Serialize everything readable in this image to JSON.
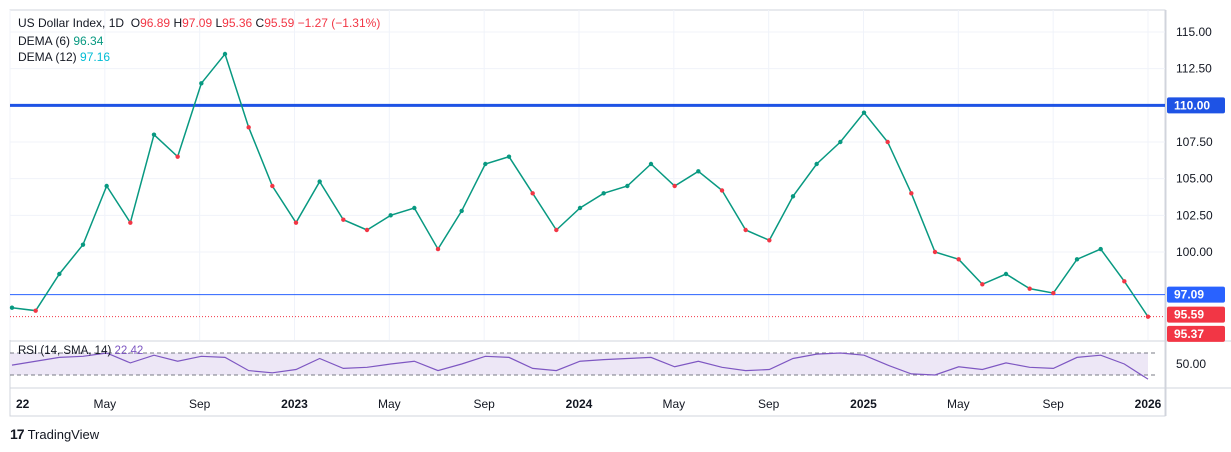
{
  "header": {
    "symbol": "US Dollar Index, 1D",
    "o_label": "O",
    "o_value": "96.89",
    "h_label": "H",
    "h_value": "97.09",
    "l_label": "L",
    "l_value": "95.36",
    "c_label": "C",
    "c_value": "95.59",
    "change": "−1.27 (−1.31%)",
    "dema6_label": "DEMA (6)",
    "dema6_value": "96.34",
    "dema12_label": "DEMA (12)",
    "dema12_value": "97.16",
    "rsi_label": "RSI (14, SMA, 14)",
    "rsi_value": "22.42"
  },
  "branding": {
    "logo": "17",
    "name": "TradingView"
  },
  "colors": {
    "up": "#089981",
    "down": "#f23645",
    "hline": "#1e53e5",
    "thin_line": "#2962ff",
    "rsi": "#7e57c2",
    "rsi_band": "#ede7f6",
    "dotted": "#f23645"
  },
  "chart_data": {
    "type": "line",
    "title": "US Dollar Index, 1D",
    "x_ticks": [
      "2022",
      "May",
      "Sep",
      "2023",
      "May",
      "Sep",
      "2024",
      "May",
      "Sep",
      "2025",
      "May",
      "Sep",
      "2026"
    ],
    "y_ticks": [
      100.0,
      102.5,
      105.0,
      107.5,
      112.5,
      115.0
    ],
    "ylim": [
      94.0,
      116.5
    ],
    "price_labels": [
      {
        "text": "110.00",
        "value": 110.0,
        "color": "#1e53e5"
      },
      {
        "text": "97.09",
        "value": 97.09,
        "color": "#2962ff"
      },
      {
        "text": "95.59",
        "value": 95.59,
        "color": "#f23645"
      },
      {
        "text": "95.37",
        "value": 95.37,
        "color": "#f23645"
      }
    ],
    "hlines": [
      110.0,
      97.09
    ],
    "dotted_lines": [
      95.59
    ],
    "series": [
      {
        "name": "US Dollar Index",
        "x": [
          "2022-01",
          "2022-02",
          "2022-03",
          "2022-04",
          "2022-05",
          "2022-06",
          "2022-07",
          "2022-08",
          "2022-09",
          "2022-10",
          "2022-11",
          "2022-12",
          "2023-01",
          "2023-02",
          "2023-03",
          "2023-04",
          "2023-05",
          "2023-06",
          "2023-07",
          "2023-08",
          "2023-09",
          "2023-10",
          "2023-11",
          "2023-12",
          "2024-01",
          "2024-02",
          "2024-03",
          "2024-04",
          "2024-05",
          "2024-06",
          "2024-07",
          "2024-08",
          "2024-09",
          "2024-10",
          "2024-11",
          "2024-12",
          "2025-01",
          "2025-02",
          "2025-03",
          "2025-04",
          "2025-05",
          "2025-06",
          "2025-07",
          "2025-08",
          "2025-09",
          "2025-10",
          "2025-11",
          "2025-12",
          "2026-01"
        ],
        "values": [
          96.2,
          96.0,
          98.5,
          100.5,
          104.5,
          102.0,
          108.0,
          106.5,
          111.5,
          113.5,
          108.5,
          104.5,
          102.0,
          104.8,
          102.2,
          101.5,
          102.5,
          103.0,
          100.2,
          102.8,
          106.0,
          106.5,
          104.0,
          101.5,
          103.0,
          104.0,
          104.5,
          106.0,
          104.5,
          105.5,
          104.2,
          101.5,
          100.8,
          103.8,
          106.0,
          107.5,
          109.5,
          107.5,
          104.0,
          100.0,
          99.5,
          97.8,
          98.5,
          97.5,
          97.2,
          99.5,
          100.2,
          98.0,
          95.59
        ]
      }
    ],
    "rsi": {
      "ylim": [
        10,
        90
      ],
      "y_ticks": [
        50.0
      ],
      "bands": [
        30,
        70
      ],
      "values": [
        48,
        55,
        62,
        64,
        70,
        52,
        66,
        55,
        64,
        62,
        38,
        34,
        40,
        60,
        42,
        44,
        50,
        55,
        38,
        50,
        64,
        62,
        42,
        38,
        55,
        58,
        60,
        62,
        45,
        55,
        44,
        38,
        40,
        60,
        68,
        70,
        66,
        48,
        32,
        30,
        45,
        40,
        52,
        44,
        42,
        62,
        66,
        50,
        22.42
      ]
    }
  }
}
